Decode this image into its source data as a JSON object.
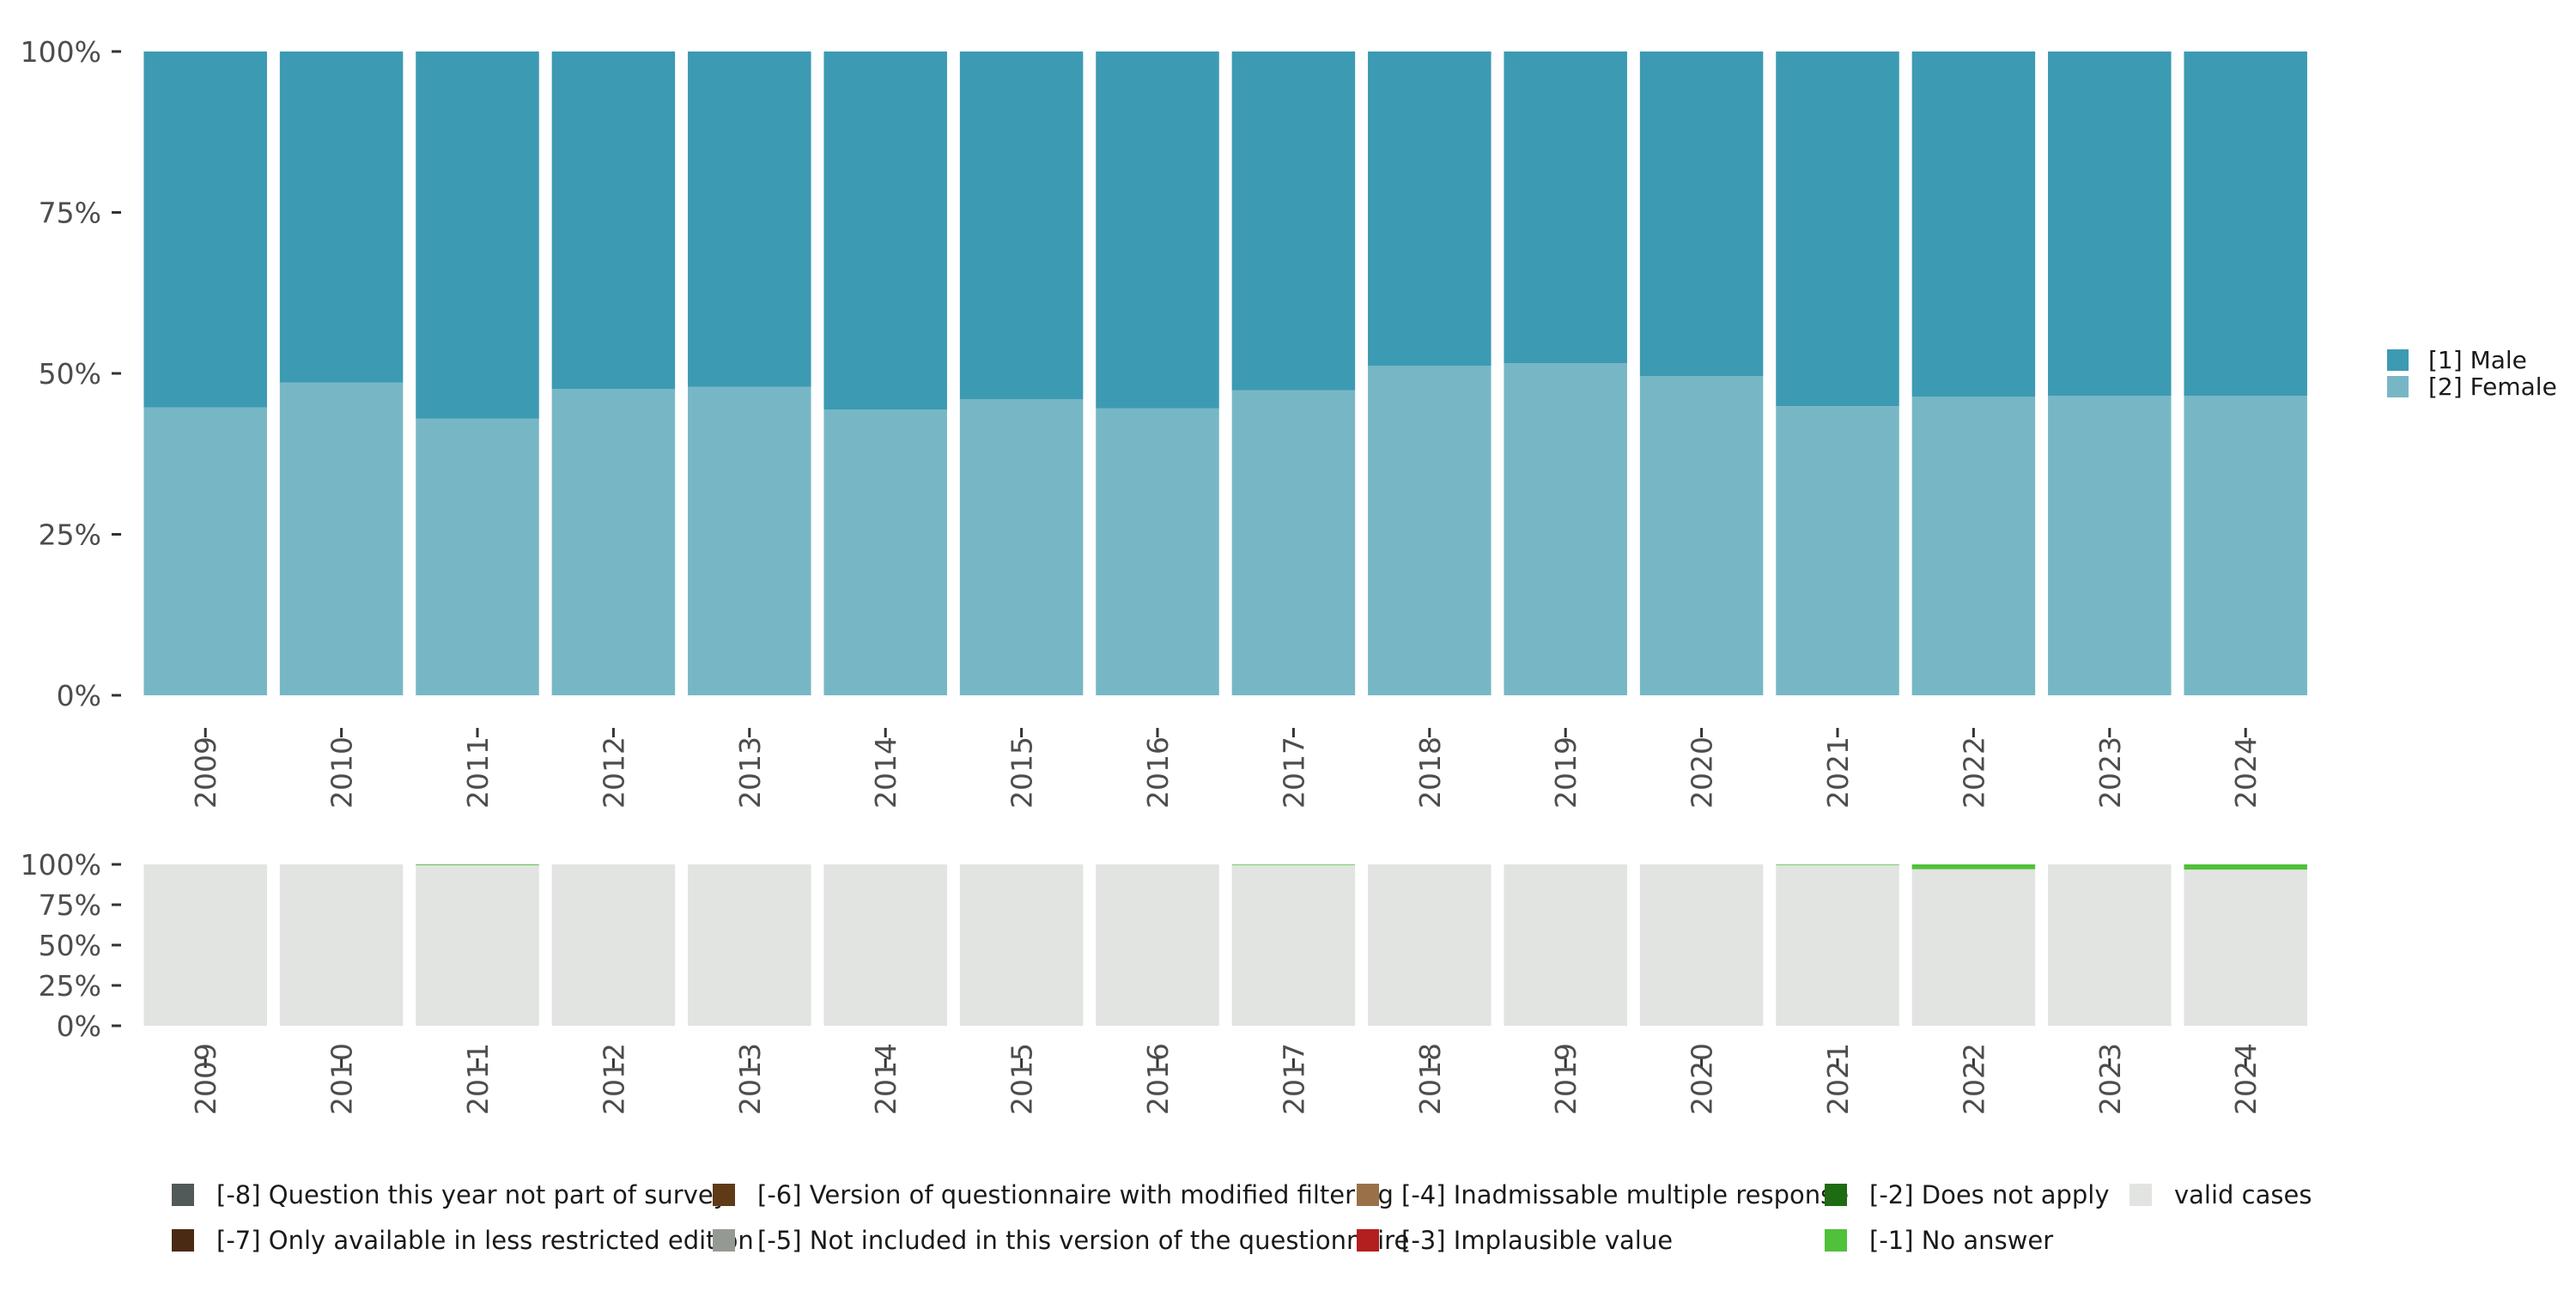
{
  "chart_data": [
    {
      "type": "bar",
      "stacked": true,
      "title": "",
      "xlabel": "",
      "ylabel": "",
      "ylim": [
        0,
        100
      ],
      "y_ticks": [
        "0%",
        "25%",
        "50%",
        "75%",
        "100%"
      ],
      "categories": [
        "2009",
        "2010",
        "2011",
        "2012",
        "2013",
        "2014",
        "2015",
        "2016",
        "2017",
        "2018",
        "2019",
        "2020",
        "2021",
        "2022",
        "2023",
        "2024"
      ],
      "series": [
        {
          "name": "[2] Female",
          "color": "#77b7c5",
          "values": [
            44.7,
            48.6,
            43.0,
            47.6,
            47.9,
            44.4,
            46.0,
            44.6,
            47.4,
            51.2,
            51.6,
            49.6,
            44.9,
            46.4,
            46.5,
            46.5
          ]
        },
        {
          "name": "[1] Male",
          "color": "#3c9ab2",
          "values": [
            55.3,
            51.4,
            57.0,
            52.4,
            52.1,
            55.6,
            54.0,
            55.4,
            52.6,
            48.8,
            48.4,
            50.4,
            55.1,
            53.6,
            53.5,
            53.5
          ]
        }
      ],
      "legend": {
        "position": "right",
        "entries": [
          {
            "label": "[1] Male",
            "color": "#3c9ab2"
          },
          {
            "label": "[2] Female",
            "color": "#77b7c5"
          }
        ]
      }
    },
    {
      "type": "bar",
      "stacked": true,
      "title": "",
      "xlabel": "",
      "ylabel": "",
      "ylim": [
        0,
        100
      ],
      "y_ticks": [
        "0%",
        "25%",
        "50%",
        "75%",
        "100%"
      ],
      "categories": [
        "2009",
        "2010",
        "2011",
        "2012",
        "2013",
        "2014",
        "2015",
        "2016",
        "2017",
        "2018",
        "2019",
        "2020",
        "2021",
        "2022",
        "2023",
        "2024"
      ],
      "series": [
        {
          "name": "valid cases",
          "color": "#e1e4e0",
          "values": [
            100,
            100,
            99.5,
            100,
            100,
            100,
            100,
            100,
            99.6,
            100,
            100,
            100,
            99.6,
            97.0,
            100,
            96.8
          ]
        },
        {
          "name": "[-2] Does not apply",
          "color": "#1f6b13",
          "values": [
            0,
            0,
            0,
            0,
            0,
            0,
            0,
            0,
            0,
            0,
            0,
            0,
            0,
            0,
            0,
            0
          ]
        },
        {
          "name": "[-1] No answer",
          "color": "#4fc13a",
          "values": [
            0,
            0,
            0.5,
            0,
            0,
            0,
            0,
            0,
            0.4,
            0,
            0,
            0,
            0.4,
            3.0,
            0,
            3.2
          ]
        }
      ],
      "legend": {
        "position": "bottom",
        "entries": [
          {
            "label": "[-8] Question this year not part of survey",
            "color": "#515a58"
          },
          {
            "label": "[-7] Only available in less restricted edition",
            "color": "#4a2a12"
          },
          {
            "label": "[-6] Version of questionnaire with modified filtering",
            "color": "#5e3a17"
          },
          {
            "label": "[-5] Not included in this version of the questionnaire",
            "color": "#949a92"
          },
          {
            "label": "[-4] Inadmissable multiple response",
            "color": "#9a7049"
          },
          {
            "label": "[-3] Implausible value",
            "color": "#b31e1e"
          },
          {
            "label": "[-2] Does not apply",
            "color": "#1f6b13"
          },
          {
            "label": "[-1] No answer",
            "color": "#4fc13a"
          },
          {
            "label": "valid cases",
            "color": "#e1e4e0"
          }
        ]
      }
    }
  ]
}
